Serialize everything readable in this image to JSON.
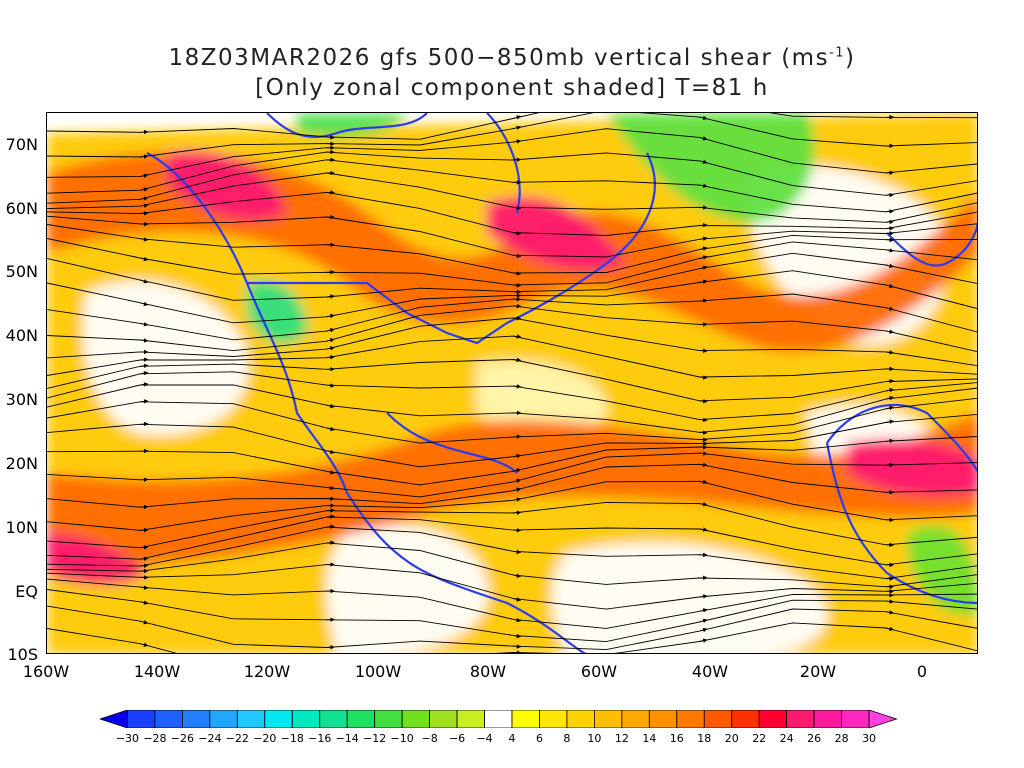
{
  "title": {
    "line1_main": "18Z03MAR2026 gfs 500−850mb vertical shear (ms",
    "line1_sup": "-1",
    "line1_end": ")",
    "line2": "[Only zonal component shaded] T=81 h"
  },
  "map": {
    "lat_labels": [
      "70N",
      "60N",
      "50N",
      "40N",
      "30N",
      "20N",
      "10N",
      "EQ",
      "10S"
    ],
    "lon_labels": [
      "160W",
      "140W",
      "120W",
      "100W",
      "80W",
      "60W",
      "40W",
      "20W",
      "0"
    ]
  },
  "colorbar": {
    "ticks": [
      "−30",
      "−28",
      "−26",
      "−24",
      "−22",
      "−20",
      "−18",
      "−16",
      "−14",
      "−12",
      "−10",
      "−8",
      "−6",
      "−4",
      "4",
      "6",
      "8",
      "10",
      "12",
      "14",
      "16",
      "18",
      "20",
      "22",
      "24",
      "26",
      "28",
      "30"
    ],
    "colors": [
      "#0a00e6",
      "#1a40ff",
      "#2060ff",
      "#2080ff",
      "#20a8ff",
      "#20c8ff",
      "#00e8f0",
      "#00e8c0",
      "#10e090",
      "#20e060",
      "#40e040",
      "#70e020",
      "#a0e020",
      "#c8f020",
      "#ffffff",
      "#ffff00",
      "#ffe600",
      "#ffd200",
      "#ffbe00",
      "#ffa800",
      "#ff9000",
      "#ff7800",
      "#ff5a00",
      "#ff3000",
      "#ff0030",
      "#ff1a70",
      "#ff1aa0",
      "#ff28c0",
      "#ff40e0"
    ]
  }
}
